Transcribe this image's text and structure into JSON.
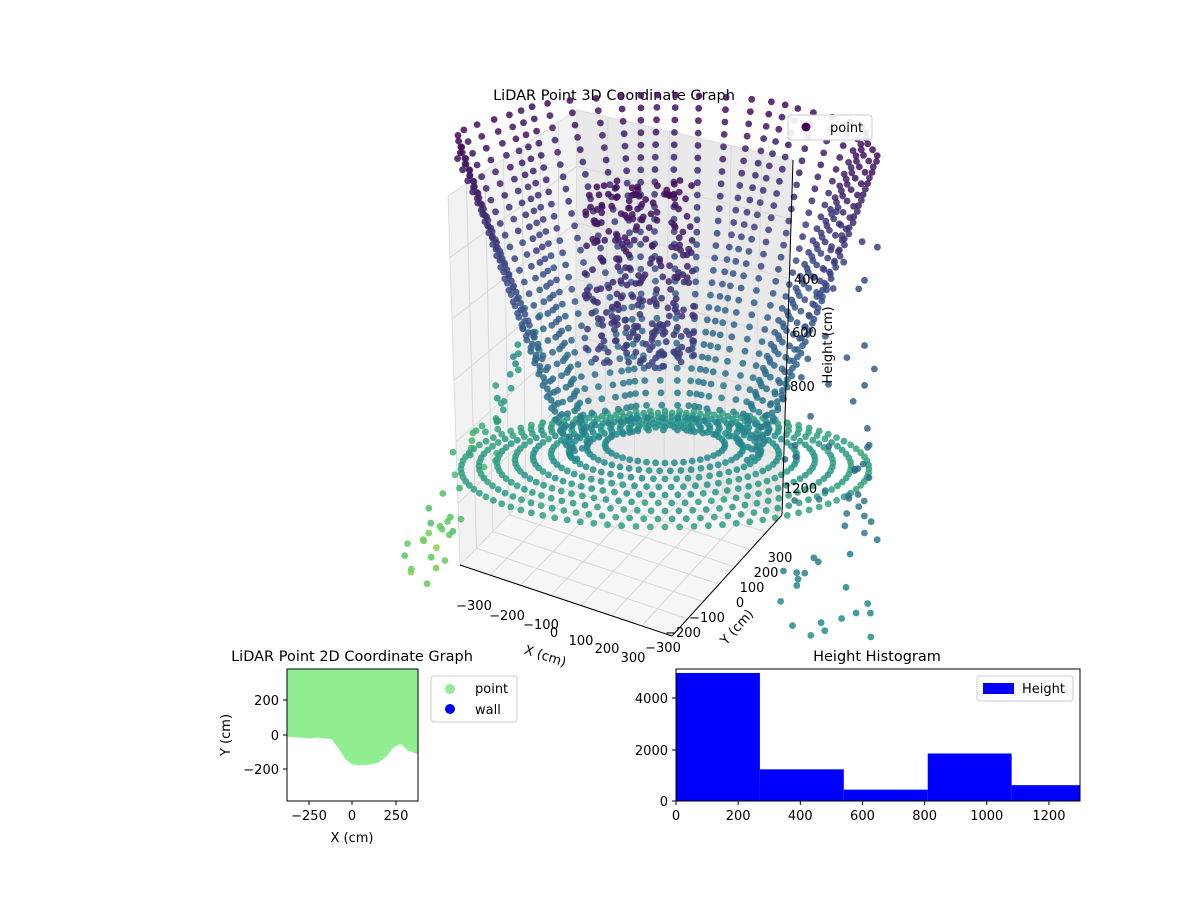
{
  "chart_data": [
    {
      "type": "scatter3d",
      "title": "LiDAR Point 3D Coordinate Graph",
      "xlabel": "X (cm)",
      "ylabel": "Y (cm)",
      "zlabel": "Height (cm)",
      "x_ticks": [
        "−300",
        "−200",
        "−100",
        "0",
        "100",
        "200",
        "300"
      ],
      "y_ticks": [
        "−300",
        "−200",
        "−100",
        "0",
        "100",
        "200",
        "300"
      ],
      "z_ticks": [
        "400",
        "600",
        "800",
        "1200"
      ],
      "xlim": [
        -380,
        380
      ],
      "ylim": [
        -380,
        380
      ],
      "zlim": [
        0,
        1300
      ],
      "grid": true,
      "legend": {
        "placement": "top-right",
        "entries": [
          "point"
        ]
      },
      "series": [
        {
          "name": "point",
          "colormap": "viridis"
        }
      ]
    },
    {
      "type": "scatter",
      "title": "LiDAR Point 2D Coordinate Graph",
      "xlabel": "X (cm)",
      "ylabel": "Y (cm)",
      "x_ticks": [
        "−250",
        "0",
        "250"
      ],
      "y_ticks": [
        "200",
        "0",
        "−200"
      ],
      "xlim": [
        -380,
        380
      ],
      "ylim": [
        -380,
        380
      ],
      "legend": {
        "placement": "outside-right",
        "entries": [
          "point",
          "wall"
        ]
      },
      "series": [
        {
          "name": "point",
          "color": "#90ee90",
          "boundary": {
            "x": [
              -380,
              -300,
              -250,
              -200,
              -120,
              -80,
              -40,
              0,
              50,
              100,
              150,
              200,
              240,
              280,
              320,
              380
            ],
            "y": [
              -10,
              -15,
              -20,
              -15,
              -25,
              -80,
              -140,
              -170,
              -175,
              -170,
              -160,
              -120,
              -70,
              -50,
              -90,
              -110
            ]
          }
        },
        {
          "name": "wall",
          "color": "#0000ff"
        }
      ]
    },
    {
      "type": "histogram",
      "title": "Height Histogram",
      "x_ticks": [
        "0",
        "200",
        "400",
        "600",
        "800",
        "1000",
        "1200"
      ],
      "y_ticks": [
        "0",
        "2000",
        "4000"
      ],
      "xlim": [
        0,
        1300
      ],
      "ylim": [
        0,
        5000
      ],
      "bins": [
        0,
        270,
        540,
        810,
        1080,
        1300
      ],
      "values": [
        4850,
        1200,
        430,
        1800,
        600
      ],
      "color": "#0000ff",
      "legend": {
        "placement": "top-right",
        "entries": [
          "Height"
        ]
      },
      "series": [
        {
          "name": "Height",
          "values": [
            4850,
            1200,
            430,
            1800,
            600
          ]
        }
      ]
    }
  ]
}
